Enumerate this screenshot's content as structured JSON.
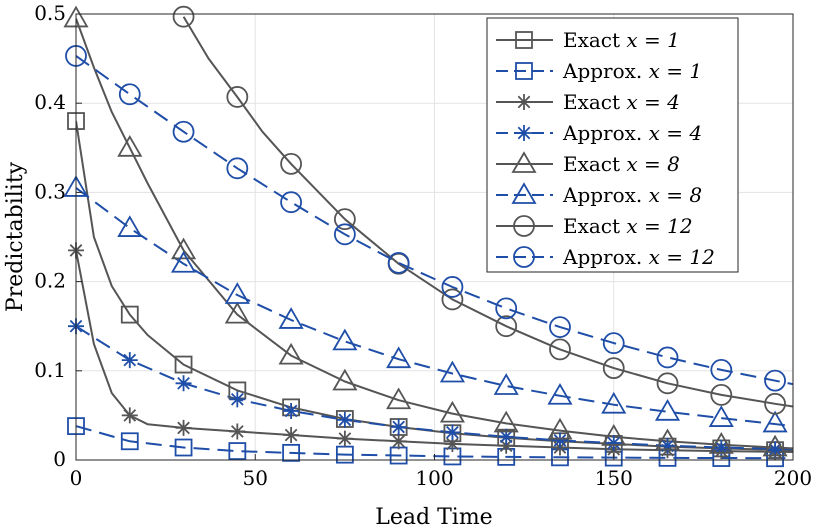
{
  "chart_data": {
    "type": "line",
    "title": "",
    "xlabel": "Lead Time",
    "ylabel": "Predictability",
    "xlim": [
      0,
      200
    ],
    "ylim": [
      0,
      0.5
    ],
    "xticks": [
      0,
      50,
      100,
      150,
      200
    ],
    "yticks": [
      0,
      0.1,
      0.2,
      0.3,
      0.4,
      0.5
    ],
    "xtick_labels": [
      "0",
      "50",
      "100",
      "150",
      "200"
    ],
    "ytick_labels": [
      "0",
      "0.1",
      "0.2",
      "0.3",
      "0.4",
      "0.5"
    ],
    "grid": true,
    "legend_position": "top-right",
    "colors": {
      "exact": "#555555",
      "approx": "#1f4ea8"
    },
    "marker_x": [
      0,
      15,
      30,
      45,
      60,
      75,
      90,
      105,
      120,
      135,
      150,
      165,
      180,
      195
    ],
    "series": [
      {
        "name": "Exact",
        "x_value": "1",
        "style": "exact",
        "marker": "square",
        "curve": [
          [
            0,
            0.38
          ],
          [
            5,
            0.25
          ],
          [
            10,
            0.195
          ],
          [
            15,
            0.163
          ],
          [
            20,
            0.14
          ],
          [
            30,
            0.107
          ],
          [
            45,
            0.078
          ],
          [
            60,
            0.059
          ],
          [
            75,
            0.046
          ],
          [
            90,
            0.037
          ],
          [
            105,
            0.03
          ],
          [
            120,
            0.025
          ],
          [
            135,
            0.021
          ],
          [
            150,
            0.018
          ],
          [
            165,
            0.015
          ],
          [
            180,
            0.013
          ],
          [
            200,
            0.011
          ]
        ],
        "points": [
          [
            0,
            0.38
          ],
          [
            15,
            0.163
          ],
          [
            30,
            0.107
          ],
          [
            45,
            0.078
          ],
          [
            60,
            0.059
          ],
          [
            75,
            0.046
          ],
          [
            90,
            0.037
          ],
          [
            105,
            0.03
          ],
          [
            120,
            0.025
          ],
          [
            135,
            0.021
          ],
          [
            150,
            0.018
          ],
          [
            165,
            0.015
          ],
          [
            180,
            0.013
          ],
          [
            195,
            0.011
          ]
        ]
      },
      {
        "name": "Approx.",
        "x_value": "1",
        "style": "approx",
        "marker": "square",
        "curve": [
          [
            0,
            0.038
          ],
          [
            15,
            0.021
          ],
          [
            30,
            0.014
          ],
          [
            45,
            0.01
          ],
          [
            60,
            0.008
          ],
          [
            75,
            0.006
          ],
          [
            90,
            0.005
          ],
          [
            105,
            0.004
          ],
          [
            120,
            0.0035
          ],
          [
            135,
            0.003
          ],
          [
            150,
            0.0027
          ],
          [
            165,
            0.0024
          ],
          [
            180,
            0.0022
          ],
          [
            200,
            0.002
          ]
        ],
        "points": [
          [
            0,
            0.038
          ],
          [
            15,
            0.021
          ],
          [
            30,
            0.014
          ],
          [
            45,
            0.01
          ],
          [
            60,
            0.008
          ],
          [
            75,
            0.006
          ],
          [
            90,
            0.005
          ],
          [
            105,
            0.004
          ],
          [
            120,
            0.0035
          ],
          [
            135,
            0.003
          ],
          [
            150,
            0.0027
          ],
          [
            165,
            0.0024
          ],
          [
            180,
            0.0022
          ],
          [
            195,
            0.002
          ]
        ]
      },
      {
        "name": "Exact",
        "x_value": "4",
        "style": "exact",
        "marker": "asterisk",
        "curve": [
          [
            0,
            0.235
          ],
          [
            5,
            0.13
          ],
          [
            10,
            0.075
          ],
          [
            15,
            0.05
          ],
          [
            20,
            0.04
          ],
          [
            30,
            0.036
          ],
          [
            45,
            0.032
          ],
          [
            60,
            0.028
          ],
          [
            75,
            0.024
          ],
          [
            90,
            0.021
          ],
          [
            105,
            0.018
          ],
          [
            120,
            0.016
          ],
          [
            135,
            0.014
          ],
          [
            150,
            0.012
          ],
          [
            165,
            0.011
          ],
          [
            180,
            0.01
          ],
          [
            200,
            0.009
          ]
        ],
        "points": [
          [
            0,
            0.235
          ],
          [
            15,
            0.05
          ],
          [
            30,
            0.036
          ],
          [
            45,
            0.032
          ],
          [
            60,
            0.028
          ],
          [
            75,
            0.024
          ],
          [
            90,
            0.021
          ],
          [
            105,
            0.018
          ],
          [
            120,
            0.016
          ],
          [
            135,
            0.014
          ],
          [
            150,
            0.012
          ],
          [
            165,
            0.011
          ],
          [
            180,
            0.01
          ],
          [
            195,
            0.009
          ]
        ]
      },
      {
        "name": "Approx.",
        "x_value": "4",
        "style": "approx",
        "marker": "asterisk",
        "curve": [
          [
            0,
            0.15
          ],
          [
            15,
            0.112
          ],
          [
            30,
            0.086
          ],
          [
            45,
            0.068
          ],
          [
            60,
            0.055
          ],
          [
            75,
            0.045
          ],
          [
            90,
            0.037
          ],
          [
            105,
            0.031
          ],
          [
            120,
            0.026
          ],
          [
            135,
            0.022
          ],
          [
            150,
            0.019
          ],
          [
            165,
            0.016
          ],
          [
            180,
            0.014
          ],
          [
            200,
            0.012
          ]
        ],
        "points": [
          [
            0,
            0.15
          ],
          [
            15,
            0.112
          ],
          [
            30,
            0.086
          ],
          [
            45,
            0.068
          ],
          [
            60,
            0.055
          ],
          [
            75,
            0.045
          ],
          [
            90,
            0.037
          ],
          [
            105,
            0.031
          ],
          [
            120,
            0.026
          ],
          [
            135,
            0.022
          ],
          [
            150,
            0.019
          ],
          [
            165,
            0.016
          ],
          [
            180,
            0.014
          ],
          [
            195,
            0.012
          ]
        ]
      },
      {
        "name": "Exact",
        "x_value": "8",
        "style": "exact",
        "marker": "triangle",
        "curve": [
          [
            0,
            0.495
          ],
          [
            5,
            0.44
          ],
          [
            10,
            0.39
          ],
          [
            15,
            0.35
          ],
          [
            20,
            0.31
          ],
          [
            30,
            0.235
          ],
          [
            45,
            0.163
          ],
          [
            60,
            0.117
          ],
          [
            75,
            0.088
          ],
          [
            90,
            0.067
          ],
          [
            105,
            0.052
          ],
          [
            120,
            0.041
          ],
          [
            135,
            0.033
          ],
          [
            150,
            0.026
          ],
          [
            165,
            0.021
          ],
          [
            180,
            0.017
          ],
          [
            200,
            0.013
          ]
        ],
        "points": [
          [
            0,
            0.495
          ],
          [
            15,
            0.35
          ],
          [
            30,
            0.235
          ],
          [
            45,
            0.163
          ],
          [
            60,
            0.117
          ],
          [
            75,
            0.088
          ],
          [
            90,
            0.067
          ],
          [
            105,
            0.052
          ],
          [
            120,
            0.041
          ],
          [
            135,
            0.033
          ],
          [
            150,
            0.026
          ],
          [
            165,
            0.021
          ],
          [
            180,
            0.017
          ],
          [
            195,
            0.014
          ]
        ]
      },
      {
        "name": "Approx.",
        "x_value": "8",
        "style": "approx",
        "marker": "triangle",
        "curve": [
          [
            0,
            0.305
          ],
          [
            15,
            0.26
          ],
          [
            30,
            0.22
          ],
          [
            45,
            0.185
          ],
          [
            60,
            0.157
          ],
          [
            75,
            0.133
          ],
          [
            90,
            0.113
          ],
          [
            105,
            0.097
          ],
          [
            120,
            0.083
          ],
          [
            135,
            0.072
          ],
          [
            150,
            0.062
          ],
          [
            165,
            0.054
          ],
          [
            180,
            0.047
          ],
          [
            200,
            0.038
          ]
        ],
        "points": [
          [
            0,
            0.305
          ],
          [
            15,
            0.26
          ],
          [
            30,
            0.22
          ],
          [
            45,
            0.185
          ],
          [
            60,
            0.157
          ],
          [
            75,
            0.133
          ],
          [
            90,
            0.113
          ],
          [
            105,
            0.097
          ],
          [
            120,
            0.083
          ],
          [
            135,
            0.072
          ],
          [
            150,
            0.062
          ],
          [
            165,
            0.054
          ],
          [
            180,
            0.047
          ],
          [
            195,
            0.041
          ]
        ]
      },
      {
        "name": "Exact",
        "x_value": "12",
        "style": "exact",
        "marker": "circle",
        "curve": [
          [
            30,
            0.497
          ],
          [
            37,
            0.45
          ],
          [
            45,
            0.407
          ],
          [
            52,
            0.368
          ],
          [
            60,
            0.332
          ],
          [
            75,
            0.27
          ],
          [
            90,
            0.22
          ],
          [
            105,
            0.18
          ],
          [
            120,
            0.15
          ],
          [
            135,
            0.124
          ],
          [
            150,
            0.103
          ],
          [
            165,
            0.086
          ],
          [
            180,
            0.073
          ],
          [
            195,
            0.063
          ],
          [
            200,
            0.06
          ]
        ],
        "points": [
          [
            30,
            0.497
          ],
          [
            45,
            0.407
          ],
          [
            60,
            0.332
          ],
          [
            75,
            0.27
          ],
          [
            90,
            0.22
          ],
          [
            105,
            0.18
          ],
          [
            120,
            0.15
          ],
          [
            135,
            0.124
          ],
          [
            150,
            0.103
          ],
          [
            165,
            0.086
          ],
          [
            180,
            0.073
          ],
          [
            195,
            0.063
          ]
        ]
      },
      {
        "name": "Approx.",
        "x_value": "12",
        "style": "approx",
        "marker": "circle",
        "curve": [
          [
            0,
            0.453
          ],
          [
            15,
            0.41
          ],
          [
            30,
            0.368
          ],
          [
            45,
            0.327
          ],
          [
            60,
            0.289
          ],
          [
            75,
            0.253
          ],
          [
            90,
            0.221
          ],
          [
            105,
            0.194
          ],
          [
            120,
            0.17
          ],
          [
            135,
            0.149
          ],
          [
            150,
            0.131
          ],
          [
            165,
            0.115
          ],
          [
            180,
            0.101
          ],
          [
            200,
            0.085
          ]
        ],
        "points": [
          [
            0,
            0.453
          ],
          [
            15,
            0.41
          ],
          [
            30,
            0.368
          ],
          [
            45,
            0.327
          ],
          [
            60,
            0.289
          ],
          [
            75,
            0.253
          ],
          [
            90,
            0.221
          ],
          [
            105,
            0.194
          ],
          [
            120,
            0.17
          ],
          [
            135,
            0.149
          ],
          [
            150,
            0.131
          ],
          [
            165,
            0.115
          ],
          [
            180,
            0.101
          ],
          [
            195,
            0.089
          ]
        ]
      }
    ],
    "legend": [
      {
        "label": "Exact",
        "math": "x = 1"
      },
      {
        "label": "Approx.",
        "math": "x = 1"
      },
      {
        "label": "Exact",
        "math": "x = 4"
      },
      {
        "label": "Approx.",
        "math": "x = 4"
      },
      {
        "label": "Exact",
        "math": "x = 8"
      },
      {
        "label": "Approx.",
        "math": "x = 8"
      },
      {
        "label": "Exact",
        "math": "x = 12"
      },
      {
        "label": "Approx.",
        "math": "x = 12"
      }
    ]
  }
}
